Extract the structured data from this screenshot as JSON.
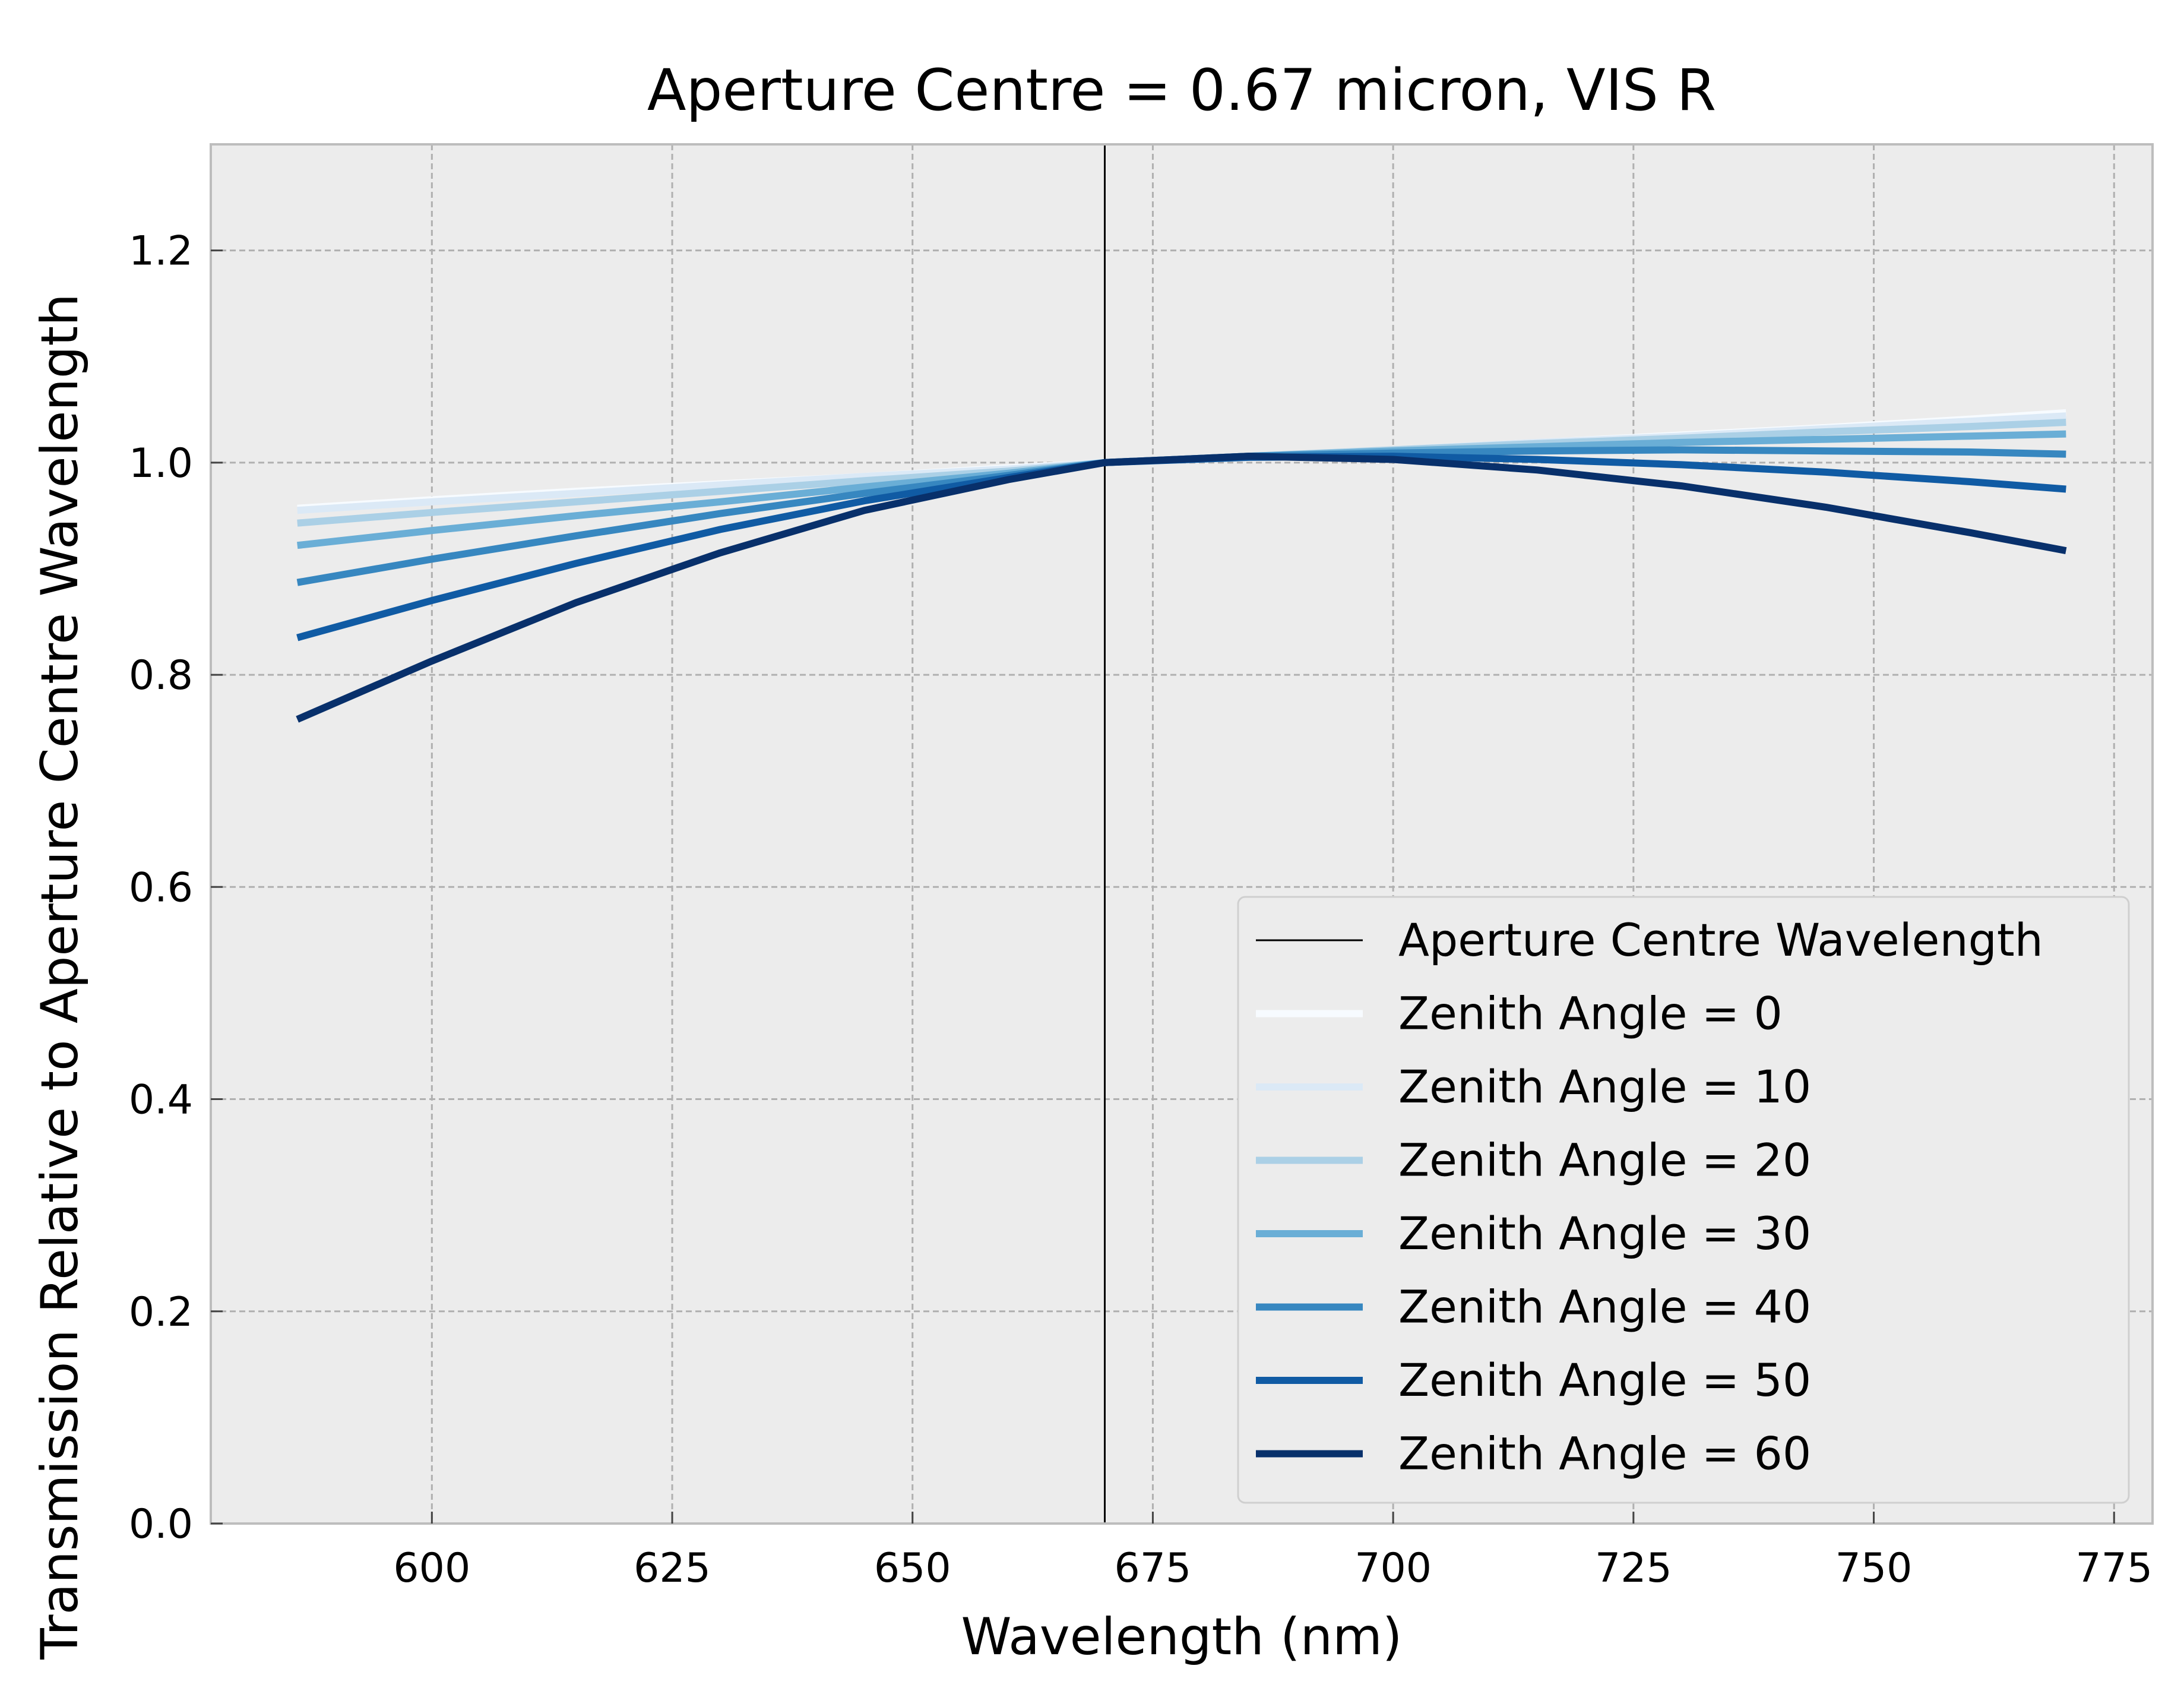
{
  "chart_data": {
    "type": "line",
    "title": "Aperture Centre = 0.67 micron, VIS R",
    "xlabel": "Wavelength (nm)",
    "ylabel": "Transmission Relative to Aperture Centre Wavelength",
    "xlim": [
      577,
      779
    ],
    "ylim": [
      0.0,
      1.3
    ],
    "xticks": [
      600,
      625,
      650,
      675,
      700,
      725,
      750,
      775
    ],
    "yticks": [
      0.0,
      0.2,
      0.4,
      0.6,
      0.8,
      1.0,
      1.2
    ],
    "ytick_labels": [
      "0.0",
      "0.2",
      "0.4",
      "0.6",
      "0.8",
      "1.0",
      "1.2"
    ],
    "grid": true,
    "legend_position": "lower-right",
    "reference_line": {
      "name": "Aperture Centre Wavelength",
      "x": 670,
      "color": "#000000"
    },
    "x": [
      586,
      600,
      615,
      630,
      645,
      660,
      670,
      685,
      700,
      715,
      730,
      745,
      760,
      770
    ],
    "series": [
      {
        "name": "Zenith Angle =  0",
        "color": "#f7fbff",
        "values": [
          0.957,
          0.965,
          0.973,
          0.98,
          0.987,
          0.995,
          1.0,
          1.006,
          1.012,
          1.019,
          1.026,
          1.033,
          1.041,
          1.047
        ]
      },
      {
        "name": "Zenith Angle = 10",
        "color": "#dbe9f6",
        "values": [
          0.955,
          0.963,
          0.971,
          0.979,
          0.987,
          0.994,
          1.0,
          1.006,
          1.012,
          1.019,
          1.025,
          1.032,
          1.039,
          1.044
        ]
      },
      {
        "name": "Zenith Angle = 20",
        "color": "#abd0e6",
        "values": [
          0.943,
          0.953,
          0.963,
          0.973,
          0.983,
          0.992,
          1.0,
          1.006,
          1.012,
          1.018,
          1.023,
          1.029,
          1.034,
          1.038
        ]
      },
      {
        "name": "Zenith Angle = 30",
        "color": "#6aaed6",
        "values": [
          0.922,
          0.936,
          0.95,
          0.963,
          0.977,
          0.99,
          1.0,
          1.006,
          1.011,
          1.015,
          1.019,
          1.022,
          1.025,
          1.027
        ]
      },
      {
        "name": "Zenith Angle = 40",
        "color": "#3787c0",
        "values": [
          0.887,
          0.909,
          0.931,
          0.952,
          0.971,
          0.988,
          1.0,
          1.006,
          1.009,
          1.011,
          1.012,
          1.011,
          1.01,
          1.008
        ]
      },
      {
        "name": "Zenith Angle = 50",
        "color": "#105ba4",
        "values": [
          0.835,
          0.87,
          0.905,
          0.937,
          0.964,
          0.986,
          1.0,
          1.005,
          1.006,
          1.003,
          0.998,
          0.991,
          0.982,
          0.975
        ]
      },
      {
        "name": "Zenith Angle = 60",
        "color": "#08306b",
        "values": [
          0.758,
          0.813,
          0.868,
          0.915,
          0.955,
          0.984,
          1.0,
          1.006,
          1.003,
          0.993,
          0.978,
          0.958,
          0.934,
          0.917
        ]
      }
    ]
  }
}
